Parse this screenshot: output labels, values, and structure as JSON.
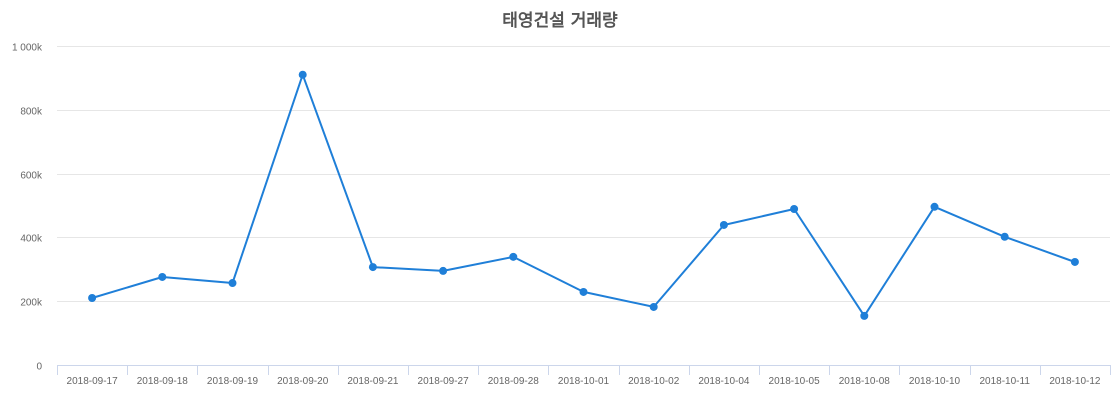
{
  "chart_data": {
    "type": "line",
    "title": "태영건설 거래량",
    "xlabel": "",
    "ylabel": "",
    "categories": [
      "2018-09-17",
      "2018-09-18",
      "2018-09-19",
      "2018-09-20",
      "2018-09-21",
      "2018-09-27",
      "2018-09-28",
      "2018-10-01",
      "2018-10-02",
      "2018-10-04",
      "2018-10-05",
      "2018-10-08",
      "2018-10-10",
      "2018-10-11",
      "2018-10-12"
    ],
    "series": [
      {
        "name": "거래량",
        "color": "#1f7fd8",
        "values": [
          210000,
          276000,
          257000,
          910000,
          307000,
          295000,
          339000,
          229000,
          182000,
          439000,
          489000,
          154000,
          496000,
          402000,
          323000
        ]
      }
    ],
    "ylim": [
      0,
      1000000
    ],
    "yticks": [
      0,
      200000,
      400000,
      600000,
      800000,
      1000000
    ],
    "ytick_labels": [
      "0",
      "200k",
      "400k",
      "600k",
      "800k",
      "1 000k"
    ],
    "grid": true,
    "legend": "none"
  },
  "colors": {
    "line": "#1f7fd8",
    "grid": "#e6e6e6",
    "axis": "#ccd6eb",
    "label": "#666666",
    "title": "#555555"
  }
}
